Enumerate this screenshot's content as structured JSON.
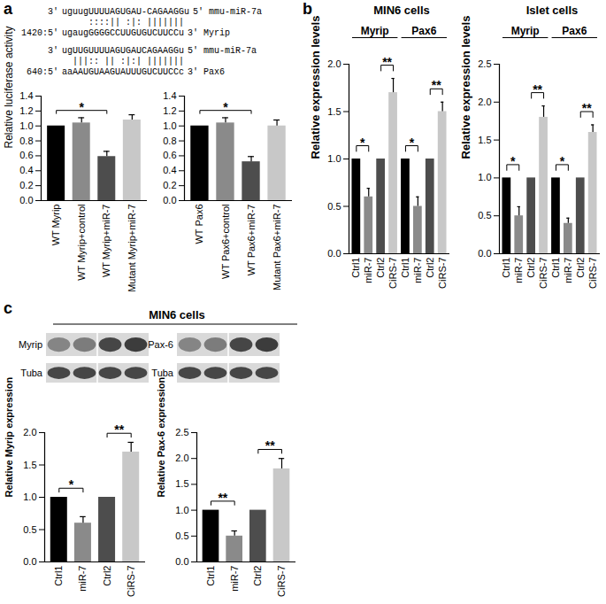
{
  "panel_labels": [
    "a",
    "b",
    "c"
  ],
  "alignments": [
    {
      "rows": [
        {
          "left": "3'",
          "seq": "uguugUUUUAGUGAU-CAGAAGGu",
          "right": "5' mmu-miR-7a"
        },
        {
          "left": null,
          "seq": "     ::::|| :|: |||||||",
          "right": null
        },
        {
          "left": "1420:5'",
          "seq": "ugaugGGGGCCUUGUGUCUUCCu",
          "right": "3' Myrip"
        }
      ]
    },
    {
      "rows": [
        {
          "left": "3'",
          "seq": "ugUUGUUUUAGUGAUCAGAAGGu",
          "right": "5' mmu-miR-7a"
        },
        {
          "left": null,
          "seq": "  |||:: || :|:| |||||||",
          "right": null
        },
        {
          "left": "640:5'",
          "seq": "aaAAUGUAAGUAUUUGUCUUCCc",
          "right": "3' Pax6"
        }
      ]
    }
  ],
  "blots": {
    "title": "MIN6 cells",
    "panels": [
      {
        "labels": [
          "Myrip",
          "Tuba"
        ]
      },
      {
        "labels": [
          "Pax-6",
          "Tuba"
        ]
      }
    ]
  },
  "chart_data": [
    {
      "type": "bar",
      "ylabel": "Relative luciferase activity",
      "categories": [
        "WT Myrip",
        "WT Myrip+control",
        "WT Myrip+miR-7",
        "Mutant Myrip+miR-7"
      ],
      "values": [
        1.0,
        1.04,
        0.59,
        1.08
      ],
      "errors": [
        0,
        0.07,
        0.07,
        0.07
      ],
      "colors": [
        "#000000",
        "#8a8a8a",
        "#4d4d4d",
        "#c8c8c8"
      ],
      "ylim": [
        0,
        1.4
      ],
      "yticks": [
        {
          "value": 0,
          "label": "0.0"
        },
        0.2,
        0.4,
        0.6,
        0.8,
        {
          "value": 1,
          "label": "1.0"
        },
        1.2,
        1.4
      ],
      "significance": [
        {
          "from": 0,
          "to": 2,
          "label": "*"
        }
      ]
    },
    {
      "type": "bar",
      "categories": [
        "WT Pax6",
        "WT Pax6+control",
        "WT Pax6+miR-7",
        "Mutant Pax6+miR-7"
      ],
      "values": [
        1.0,
        1.04,
        0.52,
        1.0
      ],
      "errors": [
        0,
        0.07,
        0.07,
        0.08
      ],
      "colors": [
        "#000000",
        "#8a8a8a",
        "#4d4d4d",
        "#c8c8c8"
      ],
      "ylim": [
        0,
        1.4
      ],
      "yticks": [
        {
          "value": 0,
          "label": "0.0"
        },
        0.2,
        0.4,
        0.6,
        0.8,
        {
          "value": 1,
          "label": "1.0"
        },
        1.2,
        1.4
      ],
      "significance": [
        {
          "from": 0,
          "to": 2,
          "label": "*"
        }
      ]
    },
    {
      "type": "bar",
      "title": "MIN6 cells",
      "ylabel": "Relative expression levels",
      "categories": [
        "Ctrl1",
        "miR-7",
        "Ctrl2",
        "CiRS-7",
        "Ctrl1",
        "miR-7",
        "Ctrl2",
        "CiRS-7"
      ],
      "values": [
        1.0,
        0.6,
        1.0,
        1.7,
        1.0,
        0.5,
        1.0,
        1.5
      ],
      "errors": [
        0,
        0.09,
        0,
        0.15,
        0,
        0.1,
        0,
        0.1
      ],
      "colors": [
        "#000000",
        "#8a8a8a",
        "#4d4d4d",
        "#c8c8c8",
        "#000000",
        "#8a8a8a",
        "#4d4d4d",
        "#c8c8c8"
      ],
      "ylim": [
        0,
        2.0
      ],
      "yticks": [
        {
          "value": 0,
          "label": "0.0"
        },
        0.5,
        {
          "value": 1,
          "label": "1.0"
        },
        1.5,
        {
          "value": 2,
          "label": "2.0"
        }
      ],
      "groups": [
        {
          "label": "Myrip",
          "from": 0,
          "to": 3
        },
        {
          "label": "Pax6",
          "from": 4,
          "to": 7
        }
      ],
      "significance": [
        {
          "from": 0,
          "to": 1,
          "label": "*"
        },
        {
          "from": 2,
          "to": 3,
          "label": "**"
        },
        {
          "from": 4,
          "to": 5,
          "label": "*"
        },
        {
          "from": 6,
          "to": 7,
          "label": "**"
        }
      ]
    },
    {
      "type": "bar",
      "title": "Islet cells",
      "ylabel": "Relative expression levels",
      "categories": [
        "Ctrl1",
        "miR-7",
        "Ctrl2",
        "CiRS-7",
        "Ctrl1",
        "miR-7",
        "Ctrl2",
        "CiRS-7"
      ],
      "values": [
        1.0,
        0.5,
        1.0,
        1.8,
        1.0,
        0.4,
        1.0,
        1.6
      ],
      "errors": [
        0,
        0.12,
        0,
        0.15,
        0,
        0.07,
        0,
        0.1
      ],
      "colors": [
        "#000000",
        "#8a8a8a",
        "#4d4d4d",
        "#c8c8c8",
        "#000000",
        "#8a8a8a",
        "#4d4d4d",
        "#c8c8c8"
      ],
      "ylim": [
        0,
        2.5
      ],
      "yticks": [
        {
          "value": 0,
          "label": "0.0"
        },
        0.5,
        {
          "value": 1,
          "label": "1.0"
        },
        1.5,
        {
          "value": 2,
          "label": "2.0"
        },
        2.5
      ],
      "groups": [
        {
          "label": "Myrip",
          "from": 0,
          "to": 3
        },
        {
          "label": "Pax6",
          "from": 4,
          "to": 7
        }
      ],
      "significance": [
        {
          "from": 0,
          "to": 1,
          "label": "*"
        },
        {
          "from": 2,
          "to": 3,
          "label": "**"
        },
        {
          "from": 4,
          "to": 5,
          "label": "*"
        },
        {
          "from": 6,
          "to": 7,
          "label": "**"
        }
      ]
    },
    {
      "type": "bar",
      "ylabel": "Relative Myrip expression",
      "categories": [
        "Ctrl1",
        "miR-7",
        "Ctrl2",
        "CiRS-7"
      ],
      "values": [
        1.0,
        0.6,
        1.0,
        1.7
      ],
      "errors": [
        0,
        0.1,
        0,
        0.15
      ],
      "colors": [
        "#000000",
        "#8a8a8a",
        "#4d4d4d",
        "#c8c8c8"
      ],
      "ylim": [
        0,
        2.0
      ],
      "yticks": [
        {
          "value": 0,
          "label": "0.0"
        },
        0.5,
        {
          "value": 1,
          "label": "1.0"
        },
        1.5,
        {
          "value": 2,
          "label": "2.0"
        }
      ],
      "significance": [
        {
          "from": 0,
          "to": 1,
          "label": "*"
        },
        {
          "from": 2,
          "to": 3,
          "label": "**"
        }
      ]
    },
    {
      "type": "bar",
      "ylabel": "Relative Pax-6 expression",
      "categories": [
        "Ctrl1",
        "miR-7",
        "Ctrl2",
        "CiRS-7"
      ],
      "values": [
        1.0,
        0.5,
        1.0,
        1.8
      ],
      "errors": [
        0,
        0.1,
        0,
        0.2
      ],
      "colors": [
        "#000000",
        "#8a8a8a",
        "#4d4d4d",
        "#c8c8c8"
      ],
      "ylim": [
        0,
        2.5
      ],
      "yticks": [
        {
          "value": 0,
          "label": "0.0"
        },
        0.5,
        {
          "value": 1,
          "label": "1.0"
        },
        1.5,
        {
          "value": 2,
          "label": "2.0"
        },
        2.5
      ],
      "significance": [
        {
          "from": 0,
          "to": 1,
          "label": "**"
        },
        {
          "from": 2,
          "to": 3,
          "label": "**"
        }
      ]
    }
  ]
}
